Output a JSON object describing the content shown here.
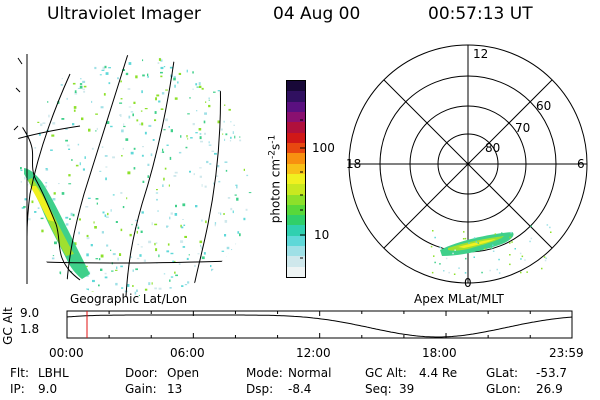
{
  "header": {
    "instrument": "Ultraviolet Imager",
    "date": "04 Aug 00",
    "time": "00:57:13 UT"
  },
  "left_panel": {
    "caption": "Geographic Lat/Lon"
  },
  "right_panel": {
    "caption": "Apex MLat/MLT",
    "mlt_labels": {
      "top": "12",
      "left": "18",
      "right": "6",
      "bottom": "0"
    },
    "lat_labels": [
      "60",
      "70",
      "80"
    ]
  },
  "colorbar": {
    "unit_main": "photon cm",
    "unit_sup1": "-2",
    "unit_mid": "s",
    "unit_sup2": "-1",
    "tick_100": "100",
    "tick_10": "10",
    "colors": [
      "#eef4f4",
      "#cfe8ec",
      "#9fe0e6",
      "#5fd8d8",
      "#30d0b0",
      "#30cf6a",
      "#58d83a",
      "#8de02a",
      "#c8e820",
      "#f0f020",
      "#f8c018",
      "#f89010",
      "#e84810",
      "#d01818",
      "#b0103c",
      "#8a1070",
      "#5a1080",
      "#301060",
      "#180838"
    ]
  },
  "altitude_plot": {
    "ylabel": "GC Alt",
    "y_top": "9.0",
    "y_bottom": "1.8",
    "x_ticks": [
      "00:00",
      "06:00",
      "12:00",
      "18:00",
      "23:59"
    ],
    "marker_time_hours": 0.95
  },
  "info": {
    "filter": {
      "key": "Flt:",
      "value": "LBHL"
    },
    "ip": {
      "key": "IP:",
      "value": "9.0"
    },
    "door": {
      "key": "Door:",
      "value": "Open"
    },
    "gain": {
      "key": "Gain:",
      "value": "13"
    },
    "mode": {
      "key": "Mode:",
      "value": "Normal"
    },
    "dsp": {
      "key": "Dsp:",
      "value": "-8.4"
    },
    "gc_alt": {
      "key": "GC Alt:",
      "value": "4.4 Re"
    },
    "seq": {
      "key": "Seq:",
      "value": "39"
    },
    "glat": {
      "key": "GLat:",
      "value": "-53.7"
    },
    "glon": {
      "key": "GLon:",
      "value": "26.9"
    }
  }
}
